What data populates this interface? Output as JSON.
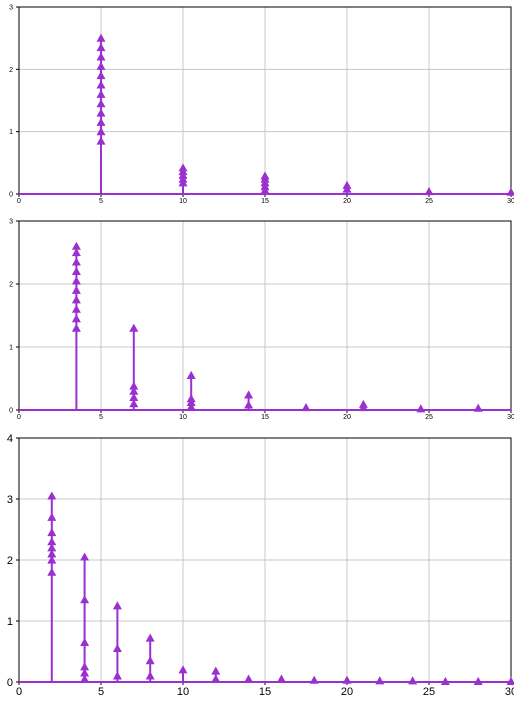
{
  "chart_data": [
    {
      "type": "stem",
      "xlim": [
        0,
        30
      ],
      "ylim": [
        0,
        3
      ],
      "x_ticks": [
        0,
        5,
        10,
        15,
        20,
        25,
        30
      ],
      "y_ticks": [
        0,
        1,
        2,
        3
      ],
      "grid": true,
      "color": "#9b30d0",
      "marker": "triangle-up",
      "stems": [
        {
          "x": 5,
          "markers": [
            0.85,
            1.0,
            1.15,
            1.3,
            1.45,
            1.6,
            1.75,
            1.9,
            2.05,
            2.2,
            2.35,
            2.5
          ]
        },
        {
          "x": 10,
          "markers": [
            0.18,
            0.24,
            0.3,
            0.36,
            0.42
          ]
        },
        {
          "x": 15,
          "markers": [
            0.06,
            0.12,
            0.18,
            0.24,
            0.29
          ]
        },
        {
          "x": 20,
          "markers": [
            0.08,
            0.14
          ]
        },
        {
          "x": 25,
          "markers": [
            0.04
          ]
        },
        {
          "x": 30,
          "markers": [
            0.03
          ]
        }
      ]
    },
    {
      "type": "stem",
      "xlim": [
        0,
        30
      ],
      "ylim": [
        0,
        3
      ],
      "x_ticks": [
        0,
        5,
        10,
        15,
        20,
        25,
        30
      ],
      "y_ticks": [
        0,
        1,
        2,
        3
      ],
      "grid": true,
      "color": "#9b30d0",
      "marker": "triangle-up",
      "stems": [
        {
          "x": 3.5,
          "markers": [
            1.3,
            1.45,
            1.6,
            1.75,
            1.9,
            2.05,
            2.2,
            2.35,
            2.5,
            2.6
          ]
        },
        {
          "x": 7,
          "markers": [
            0.1,
            0.2,
            0.3,
            0.38,
            1.3
          ]
        },
        {
          "x": 10.5,
          "markers": [
            0.05,
            0.12,
            0.18,
            0.55
          ]
        },
        {
          "x": 14,
          "markers": [
            0.08,
            0.24
          ]
        },
        {
          "x": 17.5,
          "markers": [
            0.04
          ]
        },
        {
          "x": 21,
          "markers": [
            0.04,
            0.09
          ]
        },
        {
          "x": 24.5,
          "markers": [
            0.02
          ]
        },
        {
          "x": 28,
          "markers": [
            0.03
          ]
        }
      ]
    },
    {
      "type": "stem",
      "xlim": [
        0,
        30
      ],
      "ylim": [
        0,
        4
      ],
      "x_ticks": [
        0,
        5,
        10,
        15,
        20,
        25,
        30
      ],
      "y_ticks": [
        0,
        1,
        2,
        3,
        4
      ],
      "grid": true,
      "color": "#9b30d0",
      "marker": "triangle-up",
      "stems": [
        {
          "x": 2,
          "markers": [
            1.8,
            2.0,
            2.1,
            2.2,
            2.3,
            2.45,
            2.7,
            3.05
          ]
        },
        {
          "x": 4,
          "markers": [
            0.05,
            0.15,
            0.25,
            0.65,
            1.35,
            2.05
          ]
        },
        {
          "x": 6,
          "markers": [
            0.1,
            0.55,
            1.25
          ]
        },
        {
          "x": 8,
          "markers": [
            0.1,
            0.35,
            0.72
          ]
        },
        {
          "x": 10,
          "markers": [
            0.2
          ]
        },
        {
          "x": 12,
          "markers": [
            0.05,
            0.18
          ]
        },
        {
          "x": 14,
          "markers": [
            0.05
          ]
        },
        {
          "x": 16,
          "markers": [
            0.05
          ]
        },
        {
          "x": 18,
          "markers": [
            0.03
          ]
        },
        {
          "x": 20,
          "markers": [
            0.03
          ]
        },
        {
          "x": 22,
          "markers": [
            0.02
          ]
        },
        {
          "x": 24,
          "markers": [
            0.02
          ]
        },
        {
          "x": 26,
          "markers": [
            0.01
          ]
        },
        {
          "x": 28,
          "markers": [
            0.01
          ]
        },
        {
          "x": 30,
          "markers": [
            0.01
          ]
        }
      ]
    }
  ]
}
